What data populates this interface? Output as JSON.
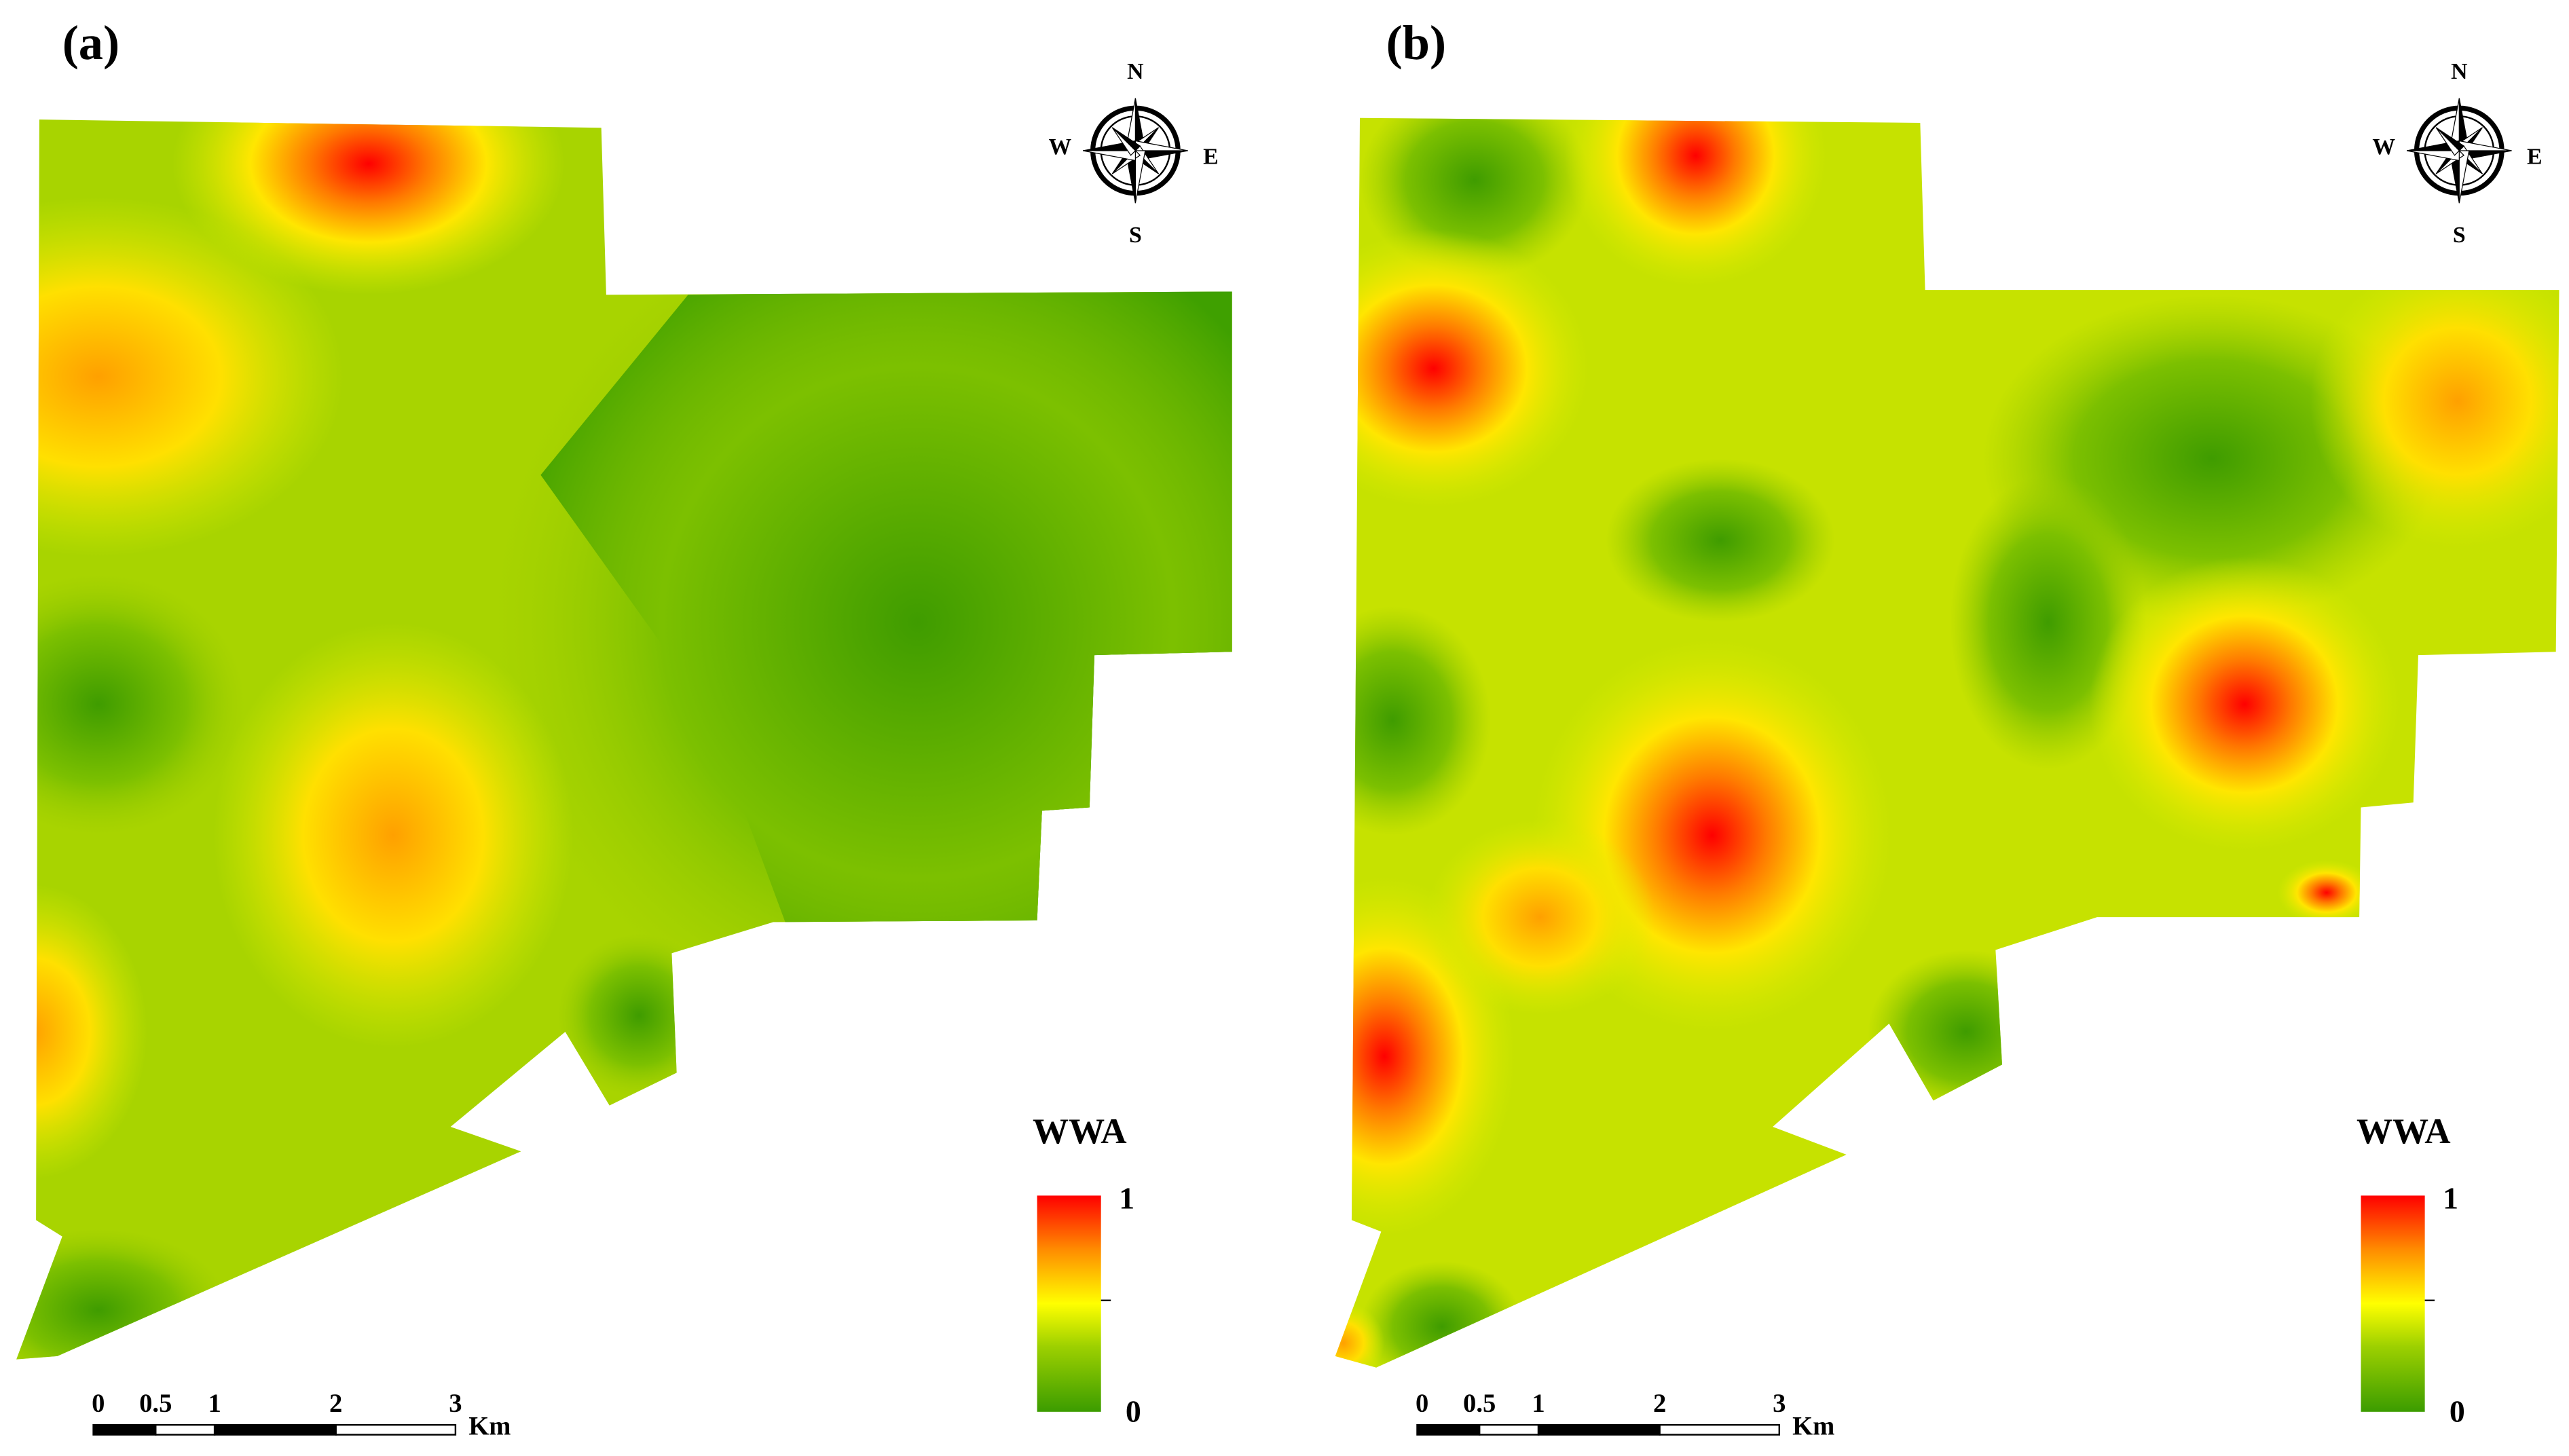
{
  "panels": [
    {
      "label": "(a)",
      "compass": {
        "n": "N",
        "e": "E",
        "s": "S",
        "w": "W"
      },
      "legend": {
        "title": "WWA",
        "max": "1",
        "min": "0"
      },
      "scale": {
        "ticks": [
          "0",
          "0.5",
          "1",
          "2",
          "3"
        ],
        "unit": "Km"
      }
    },
    {
      "label": "(b)",
      "compass": {
        "n": "N",
        "e": "E",
        "s": "S",
        "w": "W"
      },
      "legend": {
        "title": "WWA",
        "max": "1",
        "min": "0"
      },
      "scale": {
        "ticks": [
          "0",
          "0.5",
          "1",
          "2",
          "3"
        ],
        "unit": "Km"
      }
    }
  ]
}
